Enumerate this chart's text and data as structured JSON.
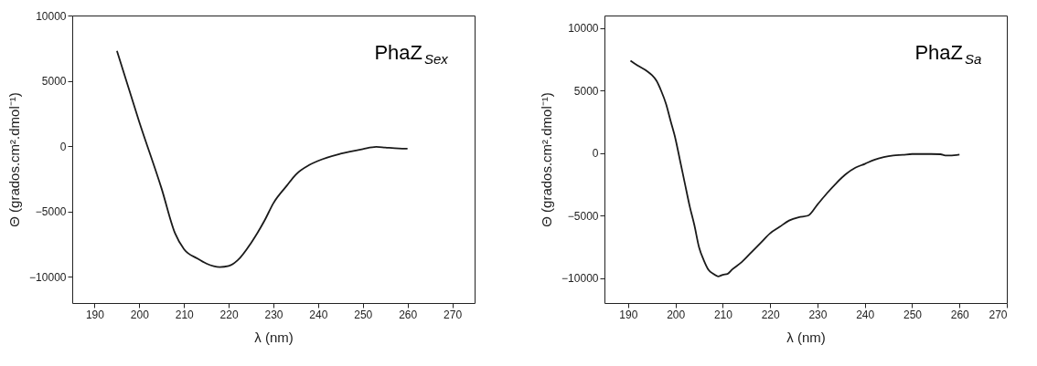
{
  "chart_data": [
    {
      "type": "line",
      "xlabel": "λ (nm)",
      "ylabel": "Θ (grados.cm².dmol⁻¹)",
      "annotations": [
        "PhaZ$_{Sex}$"
      ],
      "xlim": [
        185,
        275
      ],
      "xticks": [
        190,
        200,
        210,
        220,
        230,
        240,
        250,
        260,
        270
      ],
      "ylim": [
        -12000,
        10000
      ],
      "yticks": [
        -10000,
        -5000,
        0,
        5000,
        10000
      ],
      "grid": false,
      "series": [
        {
          "color": "#1a1a1a",
          "x": [
            195,
            200,
            205,
            208,
            210,
            213,
            215,
            218,
            220,
            222,
            225,
            228,
            230,
            233,
            235,
            238,
            240,
            245,
            250,
            253,
            255,
            258,
            260
          ],
          "values": [
            7300,
            1850,
            -3260,
            -6670,
            -7880,
            -8600,
            -8980,
            -9250,
            -9170,
            -8730,
            -7400,
            -5700,
            -4360,
            -3020,
            -2170,
            -1440,
            -1120,
            -580,
            -220,
            -50,
            -100,
            -170,
            -190
          ]
        }
      ]
    },
    {
      "type": "line",
      "xlabel": "λ (nm)",
      "ylabel": "Θ (grados.cm².dmol⁻¹)",
      "annotations": [
        "PhaZ$_{Sa}$"
      ],
      "xlim": [
        185,
        270
      ],
      "xticks": [
        190,
        200,
        210,
        220,
        230,
        240,
        250,
        260,
        270
      ],
      "ylim": [
        -12000,
        11000
      ],
      "yticks": [
        -10000,
        -5000,
        0,
        5000,
        10000
      ],
      "grid": false,
      "series": [
        {
          "color": "#1a1a1a",
          "x": [
            190.5,
            192,
            194,
            195,
            196,
            197,
            198,
            199,
            200,
            201,
            202,
            203,
            204,
            205,
            206,
            207,
            208,
            209,
            210,
            211,
            212,
            214,
            216,
            218,
            220,
            222,
            224,
            226,
            228,
            230,
            232,
            234,
            236,
            238,
            240,
            242,
            244,
            246,
            248,
            250,
            252,
            254,
            256,
            257,
            258,
            260
          ],
          "values": [
            7390,
            7000,
            6550,
            6240,
            5780,
            4960,
            3940,
            2530,
            1130,
            -660,
            -2460,
            -4250,
            -5780,
            -7570,
            -8590,
            -9360,
            -9670,
            -9870,
            -9740,
            -9670,
            -9310,
            -8720,
            -7950,
            -7190,
            -6420,
            -5910,
            -5400,
            -5140,
            -5010,
            -4120,
            -3220,
            -2400,
            -1690,
            -1180,
            -870,
            -540,
            -330,
            -200,
            -150,
            -80,
            -80,
            -80,
            -100,
            -200,
            -200,
            -130
          ]
        }
      ]
    }
  ]
}
